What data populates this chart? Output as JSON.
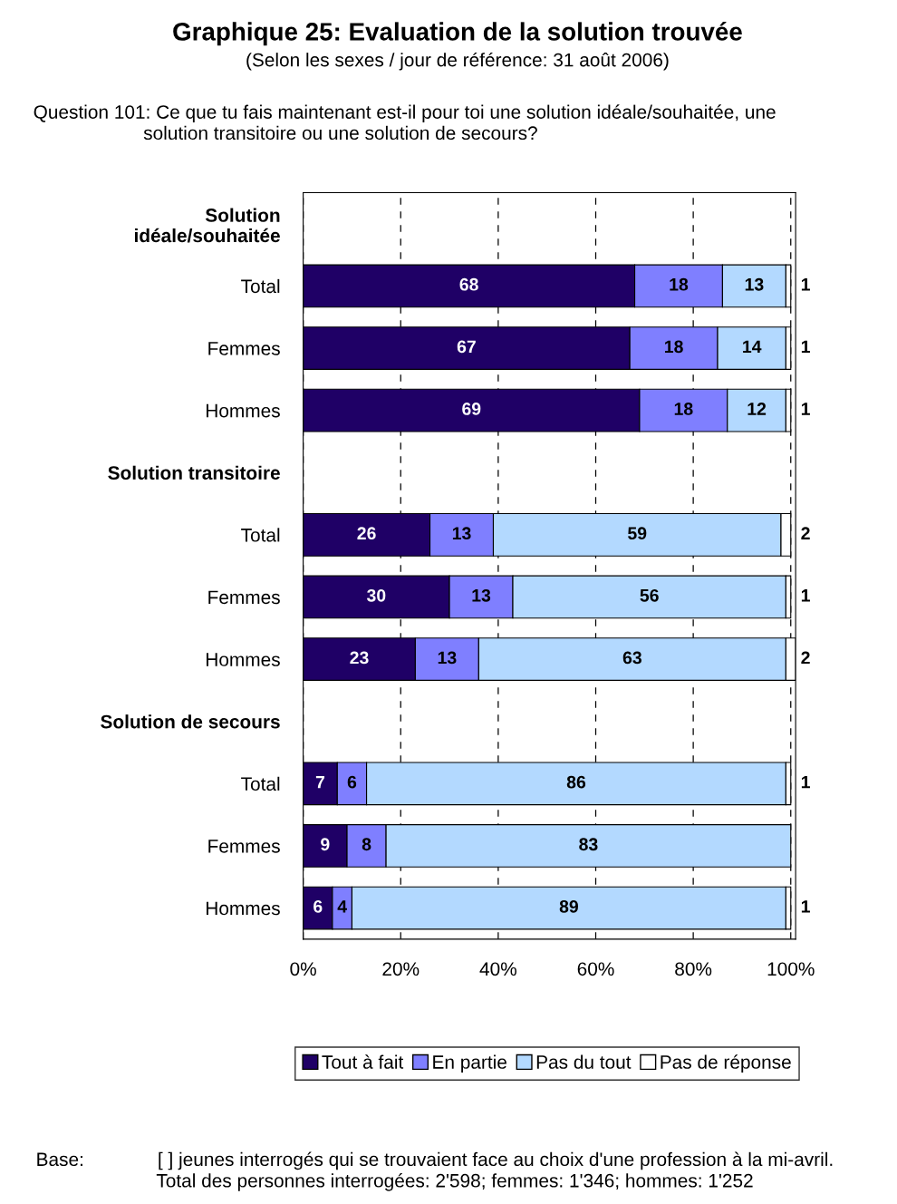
{
  "chart_data": {
    "type": "bar",
    "orientation": "horizontal",
    "stacked": true,
    "title": "Graphique 25: Evaluation de la solution trouvée",
    "subtitle": "(Selon les sexes / jour de référence: 31 août 2006)",
    "categories": [
      "Solution\nidéale/souhaitée",
      "Total",
      "Femmes",
      "Hommes",
      "Solution transitoire",
      "Total",
      "Femmes",
      "Hommes",
      "Solution de secours",
      "Total",
      "Femmes",
      "Hommes"
    ],
    "series": [
      {
        "name": "Tout à fait",
        "color": "#1f0066",
        "values": [
          null,
          68,
          67,
          69,
          null,
          26,
          30,
          23,
          null,
          7,
          9,
          6
        ]
      },
      {
        "name": "En partie",
        "color": "#7f7fff",
        "values": [
          null,
          18,
          18,
          18,
          null,
          13,
          13,
          13,
          null,
          6,
          8,
          4
        ]
      },
      {
        "name": "Pas du tout",
        "color": "#b3d9ff",
        "values": [
          null,
          13,
          14,
          12,
          null,
          59,
          56,
          63,
          null,
          86,
          83,
          89
        ]
      },
      {
        "name": "Pas de réponse",
        "color": "#ffffff",
        "values": [
          null,
          1,
          1,
          1,
          null,
          2,
          1,
          2,
          null,
          1,
          null,
          1
        ]
      }
    ],
    "xlim": [
      0,
      101
    ],
    "xticks": [
      {
        "value": 0,
        "label": "0%"
      },
      {
        "value": 20,
        "label": "20%"
      },
      {
        "value": 40,
        "label": "40%"
      },
      {
        "value": 60,
        "label": "60%"
      },
      {
        "value": 80,
        "label": "80%"
      },
      {
        "value": 100,
        "label": "100%"
      }
    ],
    "grid": "x",
    "legend": "bottom",
    "data_labels": true,
    "annotations": [
      "Question 101: Ce que tu fais maintenant est-il pour toi une solution idéale/souhaitée, une\n                     solution transitoire ou une solution de secours?",
      "Base:              [ ] jeunes interrogés qui se trouvaient face au choix d'une profession à la mi-avril.\n                       Total des personnes interrogées: 2'598; femmes: 1'346; hommes: 1'252"
    ]
  }
}
